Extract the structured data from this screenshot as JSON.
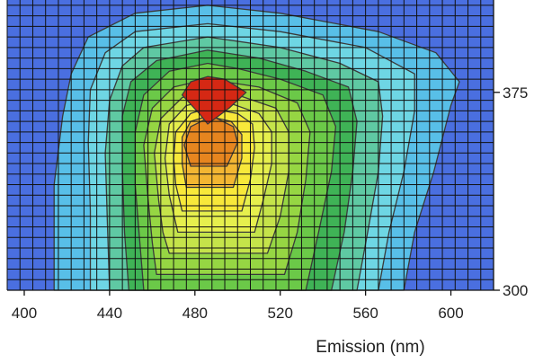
{
  "chart_data": {
    "type": "heatmap",
    "subtype": "filled-contour",
    "title": "",
    "xlabel": "Emission (nm)",
    "ylabel": "",
    "xlim": [
      392,
      620
    ],
    "ylim": [
      300,
      410
    ],
    "x_ticks": [
      {
        "value": 400,
        "label": "400"
      },
      {
        "value": 440,
        "label": "440"
      },
      {
        "value": 480,
        "label": "480"
      },
      {
        "value": 520,
        "label": "520"
      },
      {
        "value": 560,
        "label": "560"
      },
      {
        "value": 600,
        "label": "600"
      }
    ],
    "y_ticks": [
      {
        "value": 300,
        "label": "300"
      },
      {
        "value": 375,
        "label": "375"
      }
    ],
    "y_axis_side": "right",
    "grid": true,
    "grid_color": "#111111",
    "x_grid_step": 6,
    "y_grid_step": 4,
    "outline_color": "#3a3a3a",
    "levels": [
      {
        "color": "#4a6fe0",
        "points": [
          [
            392,
            300
          ],
          [
            620,
            300
          ],
          [
            620,
            410
          ],
          [
            392,
            410
          ]
        ]
      },
      {
        "color": "#58bfe8",
        "points": [
          [
            414,
            300
          ],
          [
            578,
            300
          ],
          [
            583,
            322
          ],
          [
            592,
            345
          ],
          [
            600,
            370
          ],
          [
            604,
            379
          ],
          [
            593,
            390
          ],
          [
            566,
            398
          ],
          [
            520,
            405
          ],
          [
            486,
            408
          ],
          [
            452,
            405
          ],
          [
            430,
            396
          ],
          [
            422,
            382
          ],
          [
            418,
            366
          ],
          [
            414,
            340
          ]
        ]
      },
      {
        "color": "#6ed6e4",
        "points": [
          [
            431,
            300
          ],
          [
            566,
            300
          ],
          [
            571,
            322
          ],
          [
            578,
            345
          ],
          [
            583,
            368
          ],
          [
            583,
            382
          ],
          [
            560,
            392
          ],
          [
            520,
            398
          ],
          [
            486,
            401
          ],
          [
            452,
            398
          ],
          [
            438,
            390
          ],
          [
            431,
            376
          ],
          [
            430,
            356
          ],
          [
            431,
            330
          ]
        ]
      },
      {
        "color": "#5fc9a3",
        "points": [
          [
            440,
            300
          ],
          [
            556,
            300
          ],
          [
            561,
            322
          ],
          [
            566,
            345
          ],
          [
            568,
            366
          ],
          [
            566,
            379
          ],
          [
            548,
            386
          ],
          [
            520,
            392
          ],
          [
            486,
            396
          ],
          [
            456,
            392
          ],
          [
            446,
            385
          ],
          [
            440,
            372
          ],
          [
            438,
            352
          ],
          [
            439,
            325
          ]
        ]
      },
      {
        "color": "#3fb356",
        "points": [
          [
            449,
            300
          ],
          [
            544,
            300
          ],
          [
            550,
            322
          ],
          [
            554,
            345
          ],
          [
            556,
            364
          ],
          [
            552,
            377
          ],
          [
            532,
            383
          ],
          [
            510,
            388
          ],
          [
            486,
            391
          ],
          [
            462,
            387
          ],
          [
            450,
            379
          ],
          [
            446,
            366
          ],
          [
            446,
            346
          ],
          [
            447,
            322
          ]
        ]
      },
      {
        "color": "#6bc948",
        "points": [
          [
            456,
            300
          ],
          [
            532,
            300
          ],
          [
            538,
            322
          ],
          [
            544,
            345
          ],
          [
            546,
            362
          ],
          [
            540,
            374
          ],
          [
            520,
            380
          ],
          [
            500,
            384
          ],
          [
            486,
            386
          ],
          [
            468,
            383
          ],
          [
            456,
            374
          ],
          [
            452,
            360
          ],
          [
            452,
            340
          ],
          [
            454,
            320
          ]
        ]
      },
      {
        "color": "#96d643",
        "points": [
          [
            462,
            306
          ],
          [
            522,
            306
          ],
          [
            528,
            322
          ],
          [
            532,
            342
          ],
          [
            534,
            360
          ],
          [
            528,
            371
          ],
          [
            510,
            377
          ],
          [
            486,
            380
          ],
          [
            470,
            377
          ],
          [
            460,
            369
          ],
          [
            456,
            355
          ],
          [
            458,
            335
          ],
          [
            460,
            318
          ]
        ]
      },
      {
        "color": "#c5e34a",
        "points": [
          [
            468,
            314
          ],
          [
            514,
            314
          ],
          [
            520,
            328
          ],
          [
            524,
            345
          ],
          [
            524,
            360
          ],
          [
            518,
            369
          ],
          [
            500,
            374
          ],
          [
            486,
            376
          ],
          [
            474,
            373
          ],
          [
            464,
            365
          ],
          [
            461,
            352
          ],
          [
            463,
            334
          ],
          [
            465,
            322
          ]
        ]
      },
      {
        "color": "#e6ef4d",
        "points": [
          [
            472,
            322
          ],
          [
            508,
            322
          ],
          [
            512,
            334
          ],
          [
            516,
            348
          ],
          [
            516,
            360
          ],
          [
            510,
            367
          ],
          [
            496,
            371
          ],
          [
            486,
            372
          ],
          [
            476,
            370
          ],
          [
            468,
            363
          ],
          [
            466,
            350
          ],
          [
            468,
            336
          ]
        ]
      },
      {
        "color": "#f8e83a",
        "points": [
          [
            474,
            330
          ],
          [
            502,
            330
          ],
          [
            506,
            342
          ],
          [
            508,
            354
          ],
          [
            507,
            363
          ],
          [
            500,
            367
          ],
          [
            486,
            369
          ],
          [
            478,
            367
          ],
          [
            471,
            360
          ],
          [
            470,
            350
          ],
          [
            471,
            340
          ]
        ]
      },
      {
        "color": "#f3b632",
        "points": [
          [
            476,
            339
          ],
          [
            498,
            339
          ],
          [
            502,
            350
          ],
          [
            502,
            359
          ],
          [
            497,
            364
          ],
          [
            486,
            366
          ],
          [
            478,
            364
          ],
          [
            474,
            358
          ],
          [
            474,
            348
          ]
        ]
      },
      {
        "color": "#e6851f",
        "points": [
          [
            478,
            347
          ],
          [
            495,
            347
          ],
          [
            500,
            356
          ],
          [
            498,
            362
          ],
          [
            488,
            366
          ],
          [
            478,
            362
          ],
          [
            475,
            355
          ]
        ]
      },
      {
        "color": "#d52814",
        "points": [
          [
            482,
            367
          ],
          [
            474,
            374
          ],
          [
            478,
            379
          ],
          [
            486,
            381
          ],
          [
            494,
            380
          ],
          [
            504,
            375
          ],
          [
            496,
            369
          ],
          [
            486,
            363
          ]
        ]
      }
    ]
  }
}
